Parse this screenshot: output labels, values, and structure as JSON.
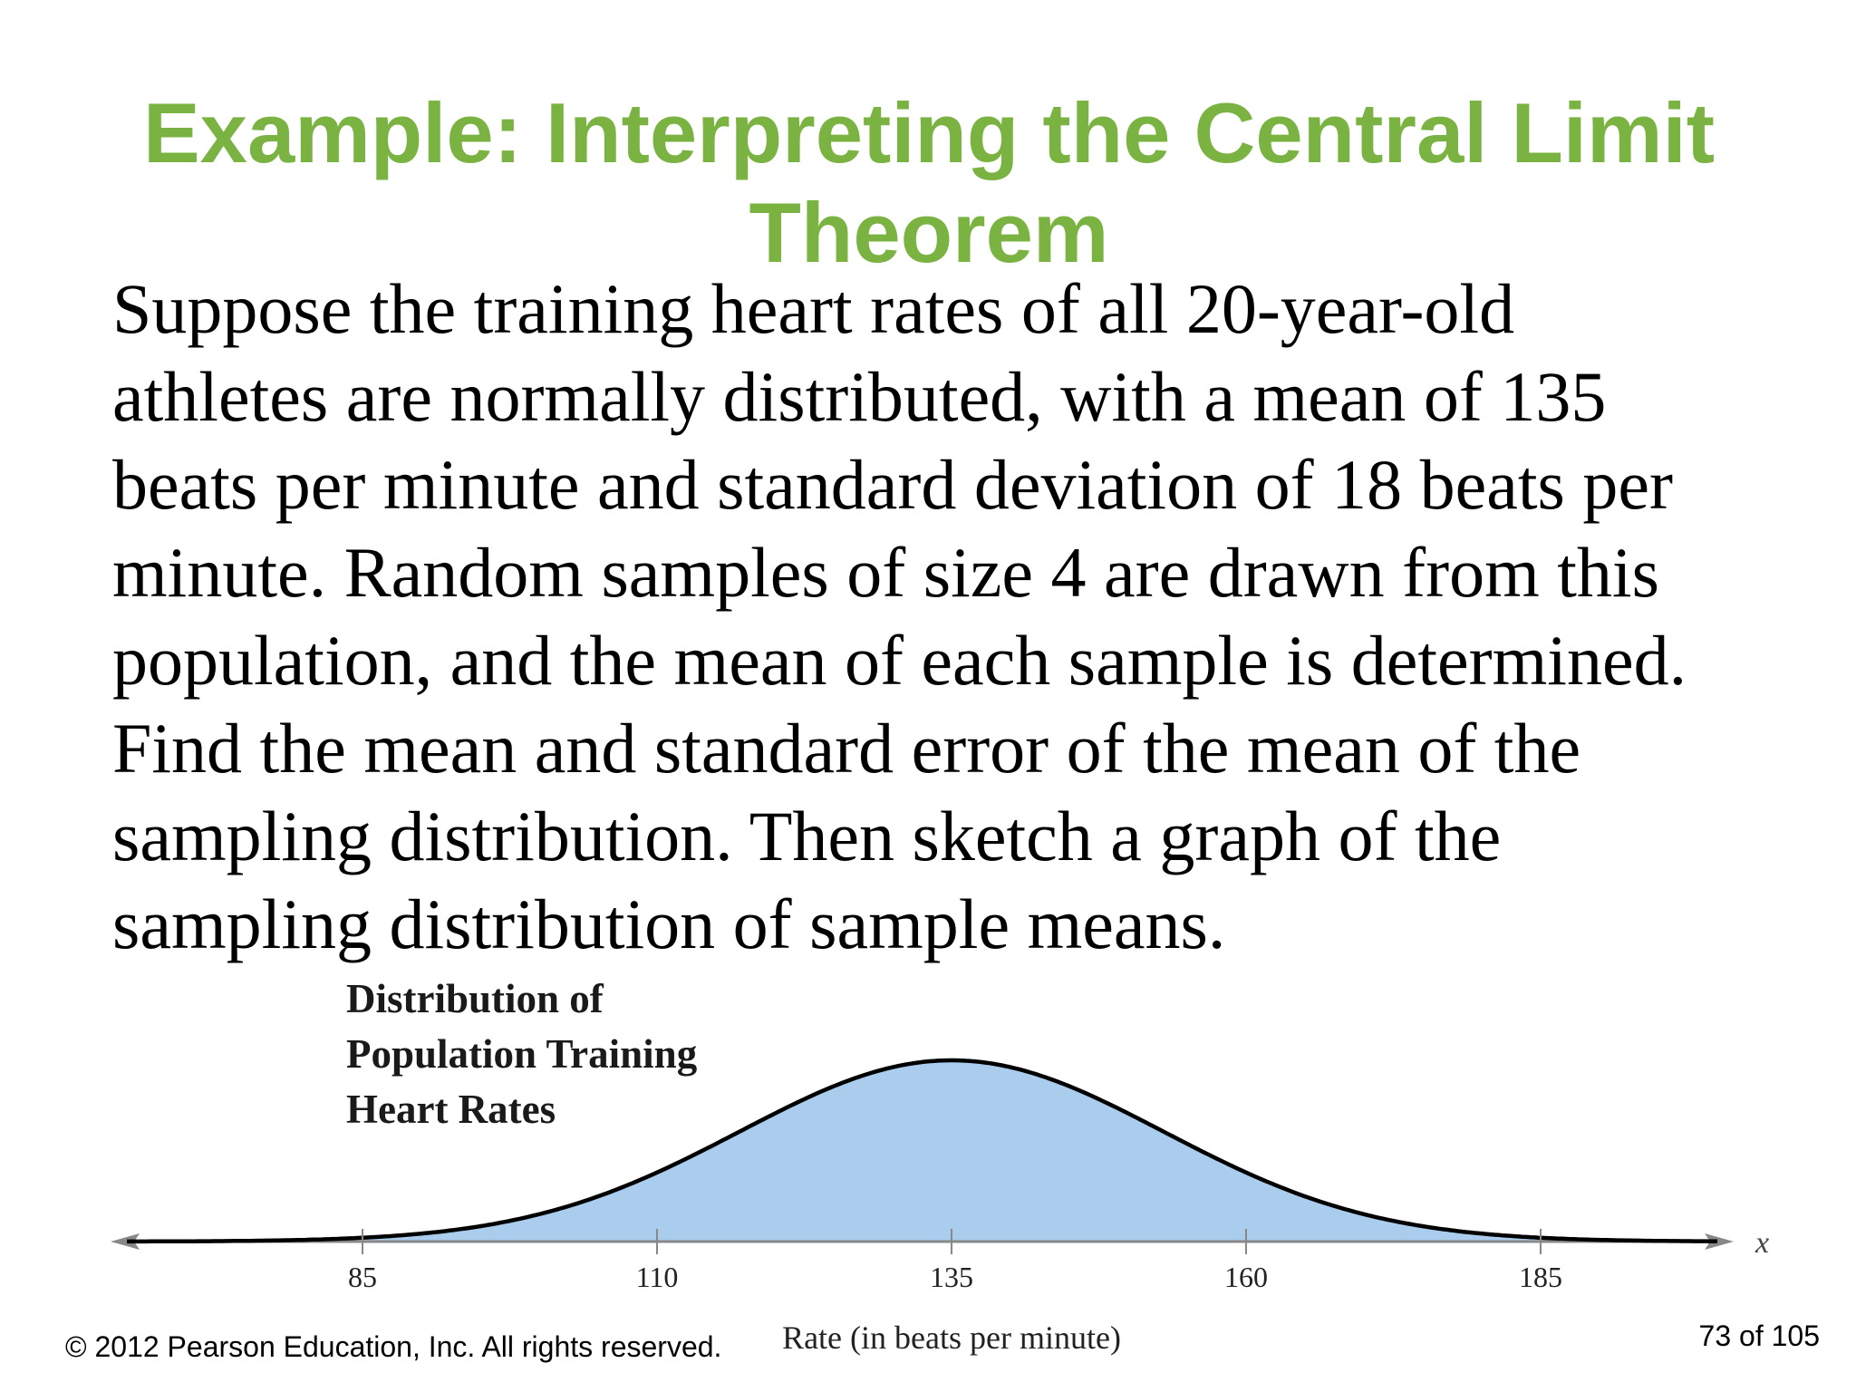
{
  "slide": {
    "title_lines": [
      "Example: Interpreting the Central Limit",
      "Theorem"
    ],
    "title_color": "#7ab342",
    "body_lines": [
      "Suppose the training heart rates of all 20-year-old",
      "athletes are normally distributed, with a mean of 135",
      "beats per minute and standard deviation of 18 beats per",
      "minute. Random samples of size 4 are drawn from this",
      "population, and the mean of each sample is determined.",
      "Find the mean and standard error of the mean of the",
      "sampling distribution. Then sketch a graph of the",
      "sampling distribution of sample means."
    ]
  },
  "figure": {
    "title_lines": [
      "Distribution of",
      "Population Training",
      "Heart Rates"
    ]
  },
  "chart_data": {
    "type": "area",
    "distribution": "normal",
    "mean": 135,
    "std_dev": 18,
    "xlim": [
      65,
      200
    ],
    "x_ticks": [
      85,
      110,
      135,
      160,
      185
    ],
    "x_tick_labels": [
      "85",
      "110",
      "135",
      "160",
      "185"
    ],
    "x_axis_variable": "x",
    "xlabel": "Rate (in beats per minute)",
    "fill_color": "#aacdee",
    "line_color": "#000000",
    "axis_color": "#888888"
  },
  "footer": {
    "copyright": "© 2012 Pearson Education, Inc. All rights reserved.",
    "page": "73 of 105"
  }
}
